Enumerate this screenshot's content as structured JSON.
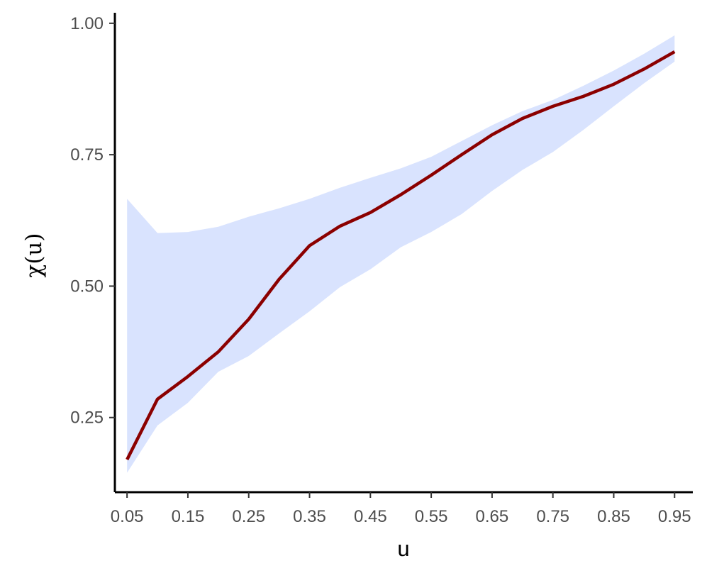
{
  "chart_data": {
    "type": "line",
    "xlabel": "u",
    "ylabel": "χ(u)",
    "x_ticks": [
      "0.05",
      "0.15",
      "0.25",
      "0.35",
      "0.45",
      "0.55",
      "0.65",
      "0.75",
      "0.85",
      "0.95"
    ],
    "y_ticks": [
      "0.25",
      "0.50",
      "0.75",
      "1.00"
    ],
    "xlim": [
      0.03,
      0.98
    ],
    "ylim": [
      0.108,
      1.02
    ],
    "grid": false,
    "x": [
      0.05,
      0.1,
      0.15,
      0.2,
      0.25,
      0.3,
      0.35,
      0.4,
      0.45,
      0.5,
      0.55,
      0.6,
      0.65,
      0.7,
      0.75,
      0.8,
      0.85,
      0.9,
      0.95
    ],
    "series": [
      {
        "values": [
          0.17,
          0.285,
          0.328,
          0.375,
          0.437,
          0.513,
          0.577,
          0.614,
          0.64,
          0.674,
          0.711,
          0.75,
          0.788,
          0.819,
          0.842,
          0.861,
          0.884,
          0.913,
          0.946
        ],
        "color": "#8b0000"
      }
    ],
    "band": {
      "lower": [
        0.145,
        0.235,
        0.278,
        0.337,
        0.367,
        0.41,
        0.452,
        0.498,
        0.532,
        0.574,
        0.603,
        0.637,
        0.681,
        0.721,
        0.755,
        0.797,
        0.842,
        0.886,
        0.927
      ],
      "upper": [
        0.666,
        0.601,
        0.603,
        0.613,
        0.632,
        0.648,
        0.666,
        0.687,
        0.706,
        0.724,
        0.746,
        0.776,
        0.806,
        0.833,
        0.854,
        0.881,
        0.91,
        0.942,
        0.977
      ],
      "color": "#d9e3fe"
    }
  }
}
